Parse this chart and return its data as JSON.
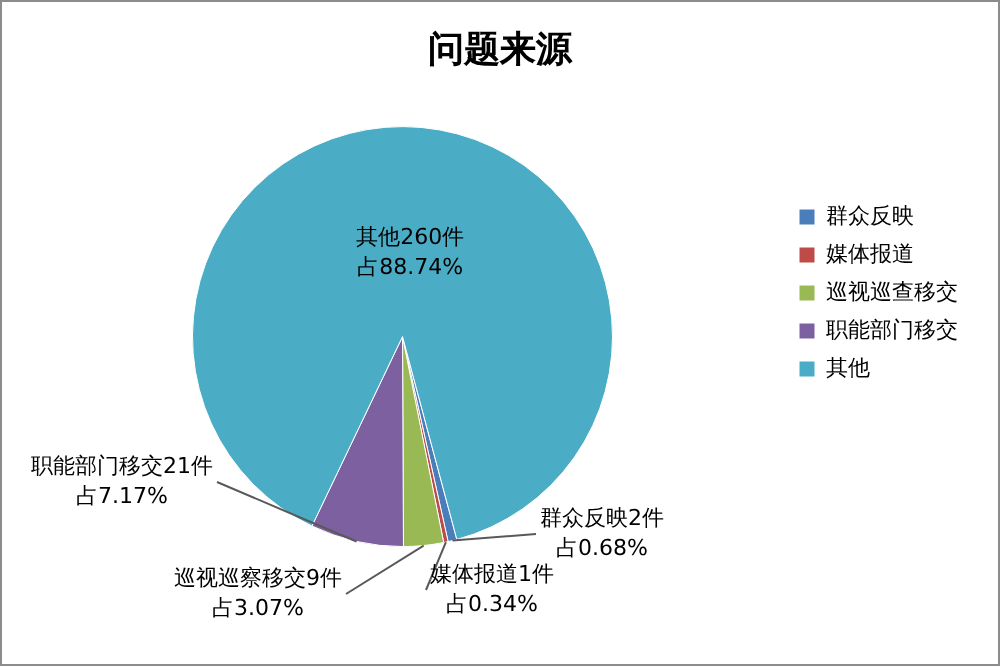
{
  "chart_data": {
    "type": "pie",
    "title": "问题来源",
    "categories": [
      "群众反映",
      "媒体报道",
      "巡视巡查移交",
      "职能部门移交",
      "其他"
    ],
    "values": [
      2,
      1,
      9,
      21,
      260
    ],
    "colors": [
      "#4a7ebb",
      "#be4b48",
      "#98b954",
      "#7d60a0",
      "#4bacc6"
    ],
    "value_labels": [
      "群众反映2件占0.68%",
      "媒体报道1件占0.34%",
      "巡视巡察移交9件占3.07%",
      "职能部门移交21件占7.17%",
      "其他260件占88.74%"
    ],
    "legend": "right"
  }
}
